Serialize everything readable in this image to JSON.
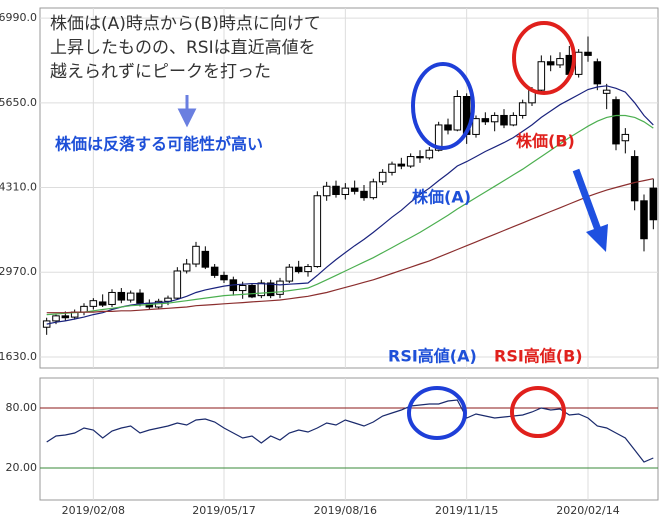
{
  "chart_data": [
    {
      "type": "candlestick",
      "annotations": [
        "株価は(A)時点から(B)時点に向けて",
        "上昇したものの、RSIは直近高値を",
        "越えられずにピークを打った",
        "株価は反落する可能性が高い",
        "株価(A)",
        "株価(B)"
      ],
      "open": [
        2100,
        2200,
        2280,
        2260,
        2340,
        2430,
        2500,
        2460,
        2650,
        2530,
        2640,
        2480,
        2420,
        2510,
        2560,
        2990,
        3100,
        3300,
        3050,
        2920,
        2850,
        2680,
        2760,
        2600,
        2800,
        2620,
        2830,
        3050,
        2980,
        3060,
        4180,
        4330,
        4200,
        4300,
        4250,
        4150,
        4400,
        4550,
        4680,
        4650,
        4800,
        4780,
        4900,
        5300,
        5220,
        5750,
        5150,
        5400,
        5350,
        5450,
        5300,
        5450,
        5650,
        5850,
        6300,
        6250,
        6400,
        6100,
        6450,
        6300,
        5800,
        5700,
        5050,
        4800,
        4100,
        4300
      ],
      "high": [
        2250,
        2300,
        2350,
        2380,
        2480,
        2560,
        2620,
        2700,
        2720,
        2680,
        2700,
        2540,
        2550,
        2600,
        3050,
        3180,
        3450,
        3380,
        3100,
        2980,
        2900,
        2820,
        2800,
        2850,
        2850,
        2880,
        3100,
        3150,
        3100,
        4250,
        4400,
        4420,
        4380,
        4420,
        4350,
        4450,
        4600,
        4720,
        4780,
        4850,
        4900,
        4950,
        5350,
        5400,
        5850,
        5800,
        5450,
        5500,
        5500,
        5550,
        5500,
        5700,
        5900,
        6400,
        6400,
        6450,
        6550,
        6500,
        6700,
        6350,
        5950,
        5750,
        5250,
        4900,
        4200,
        4450
      ],
      "low": [
        1980,
        2150,
        2200,
        2220,
        2290,
        2380,
        2420,
        2420,
        2480,
        2490,
        2430,
        2380,
        2380,
        2450,
        2540,
        2950,
        3050,
        3020,
        2880,
        2800,
        2600,
        2550,
        2560,
        2560,
        2560,
        2560,
        2800,
        2950,
        2900,
        3040,
        4100,
        4150,
        4120,
        4200,
        4100,
        4120,
        4350,
        4500,
        4600,
        4620,
        4700,
        4750,
        4880,
        5150,
        5200,
        5000,
        5100,
        5300,
        5200,
        5250,
        5280,
        5400,
        5600,
        5800,
        6150,
        6200,
        6050,
        6050,
        6300,
        5850,
        5550,
        4900,
        4850,
        3950,
        3300,
        3650
      ],
      "close": [
        2200,
        2280,
        2250,
        2340,
        2430,
        2520,
        2450,
        2650,
        2530,
        2640,
        2480,
        2420,
        2510,
        2560,
        2990,
        3100,
        3380,
        3050,
        2920,
        2850,
        2680,
        2760,
        2580,
        2800,
        2600,
        2830,
        3050,
        2980,
        3060,
        4180,
        4330,
        4200,
        4300,
        4250,
        4150,
        4400,
        4550,
        4680,
        4650,
        4800,
        4780,
        4900,
        5300,
        5220,
        5750,
        5150,
        5400,
        5350,
        5450,
        5300,
        5450,
        5650,
        5850,
        6300,
        6250,
        6350,
        6100,
        6450,
        6400,
        5950,
        5850,
        5000,
        5150,
        4100,
        3500,
        3800
      ],
      "up_color": "#ffffff",
      "down_color": "#000000",
      "series": [
        {
          "color": "#1a237e",
          "values": [
            2150,
            2180,
            2200,
            2230,
            2260,
            2300,
            2330,
            2380,
            2420,
            2450,
            2470,
            2480,
            2490,
            2500,
            2540,
            2590,
            2650,
            2690,
            2720,
            2750,
            2770,
            2780,
            2790,
            2790,
            2780,
            2770,
            2780,
            2790,
            2800,
            2920,
            3050,
            3170,
            3280,
            3390,
            3490,
            3600,
            3720,
            3840,
            3950,
            4080,
            4200,
            4300,
            4420,
            4530,
            4650,
            4720,
            4800,
            4880,
            4950,
            5020,
            5100,
            5200,
            5300,
            5420,
            5520,
            5620,
            5700,
            5780,
            5860,
            5900,
            5920,
            5880,
            5820,
            5650,
            5450,
            5300
          ]
        },
        {
          "color": "#4caf50",
          "values": [
            2300,
            2310,
            2320,
            2330,
            2340,
            2360,
            2380,
            2400,
            2420,
            2440,
            2450,
            2460,
            2470,
            2480,
            2500,
            2520,
            2540,
            2560,
            2580,
            2600,
            2610,
            2620,
            2630,
            2640,
            2650,
            2660,
            2680,
            2700,
            2720,
            2780,
            2850,
            2920,
            2990,
            3060,
            3130,
            3200,
            3280,
            3360,
            3440,
            3520,
            3600,
            3690,
            3780,
            3870,
            3970,
            4060,
            4150,
            4240,
            4330,
            4420,
            4510,
            4600,
            4700,
            4800,
            4900,
            5000,
            5100,
            5190,
            5280,
            5360,
            5420,
            5450,
            5450,
            5420,
            5350,
            5250
          ]
        },
        {
          "color": "#8b2e2e",
          "values": [
            2330,
            2330,
            2330,
            2340,
            2340,
            2340,
            2350,
            2350,
            2360,
            2360,
            2370,
            2380,
            2390,
            2400,
            2410,
            2420,
            2440,
            2450,
            2460,
            2470,
            2480,
            2490,
            2500,
            2510,
            2520,
            2530,
            2550,
            2570,
            2590,
            2620,
            2650,
            2690,
            2730,
            2770,
            2810,
            2850,
            2900,
            2950,
            3000,
            3050,
            3100,
            3150,
            3210,
            3270,
            3330,
            3390,
            3450,
            3510,
            3570,
            3630,
            3690,
            3750,
            3810,
            3870,
            3930,
            3990,
            4050,
            4110,
            4170,
            4220,
            4270,
            4310,
            4350,
            4390,
            4420,
            4450
          ]
        }
      ],
      "ylim": [
        1455,
        7150
      ],
      "yticks": [
        {
          "value": 1630,
          "label": "1630.0"
        },
        {
          "value": 2970,
          "label": "2970.0"
        },
        {
          "value": 4310,
          "label": "4310.0"
        },
        {
          "value": 5650,
          "label": "5650.0"
        },
        {
          "value": 6990,
          "label": "6990.0"
        }
      ],
      "grid": true
    },
    {
      "type": "line",
      "annotations": [
        "RSI高値(A)",
        "RSI高値(B)"
      ],
      "categories": [
        null,
        null,
        null,
        null,
        null,
        "2019/02/08",
        null,
        null,
        null,
        null,
        null,
        null,
        null,
        null,
        null,
        null,
        null,
        null,
        null,
        "2019/05/17",
        null,
        null,
        null,
        null,
        null,
        null,
        null,
        null,
        null,
        null,
        null,
        null,
        "2019/08/16",
        null,
        null,
        null,
        null,
        null,
        null,
        null,
        null,
        null,
        null,
        null,
        null,
        "2019/11/15",
        null,
        null,
        null,
        null,
        null,
        null,
        null,
        null,
        null,
        null,
        null,
        null,
        "2020/02/14",
        null,
        null,
        null,
        null,
        null,
        null,
        null
      ],
      "series": [
        {
          "color": "#1a2a6c",
          "values": [
            46,
            52,
            53,
            55,
            60,
            58,
            50,
            57,
            60,
            62,
            55,
            58,
            60,
            62,
            65,
            63,
            68,
            69,
            66,
            60,
            55,
            50,
            52,
            45,
            52,
            48,
            55,
            58,
            56,
            60,
            65,
            63,
            68,
            65,
            62,
            66,
            72,
            75,
            78,
            82,
            83,
            84,
            84,
            87,
            88,
            70,
            74,
            72,
            70,
            71,
            72,
            73,
            76,
            80,
            78,
            79,
            73,
            74,
            70,
            62,
            60,
            55,
            50,
            38,
            26,
            30
          ]
        }
      ],
      "ylim": [
        -12,
        110
      ],
      "yticks": [
        {
          "value": 20,
          "label": "20.00"
        },
        {
          "value": 80,
          "label": "80.00"
        }
      ],
      "grid_colors": [
        "#3a8a3a",
        "#8b1a1a"
      ]
    }
  ]
}
